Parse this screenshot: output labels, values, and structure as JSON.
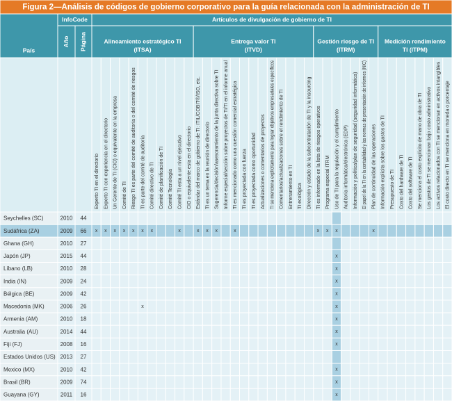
{
  "title": "Figura 2—Análisis de códigos de gobierno corporativo para la guía relacionada con la administración de TI",
  "header": {
    "country": "País",
    "infocode": "InfoCode",
    "year": "Año",
    "page": "Página",
    "articles": "Artículos de divulgación de gobierno de TI"
  },
  "groups": [
    {
      "name": "Alineamiento estratégico TI",
      "code": "(ITSA)",
      "items": [
        "Experto TI en el directorio",
        "Experto TI con experiencia en el directorio",
        "Un Gerente de TI (CIO) o equivalente en la empresa",
        "Comité de TI",
        "Riesgo TI es parte del comité de auditoría o del comité de riesgos",
        "TI es parte del comité de auditoría",
        "Comité directivo de TI",
        "Comité de planificación de TI",
        "Comité Tecnología",
        "Comité TI esta a un nivel ejecutivo",
        "CIO o equivalente esta en el directorio"
      ]
    },
    {
      "name": "Entrega valor TI",
      "code": "(ITVD)",
      "items": [
        "Estándar del marco de gobierno de TI: ITIL/COBIT®/ISO, etc.",
        "TI es un tema en la reunión de directorio",
        "Sugerencia/decisión/asesoramiento de la junta directiva sobre TI",
        "Informe especial/sección sobre proyectos de TI/TI en el informe anual",
        "TI es mencionado como una cuestión comercial estratégica",
        "TI es proyectada con fuerza",
        "TI es proyectada como oportunidad",
        "Actualizaciones o comentarios de proyectos",
        "TI se menciona explícitamente para lograr objetivos empresariales específicos",
        "Comentarios/actualizaciones sobre el rendimiento de TI",
        "Entrenamiento en TI",
        "TI ecológica",
        "Dirección y estado de la subcontratación de TI y la insourcing"
      ]
    },
    {
      "name": "Gestión riesgo de TI",
      "code": "(ITRM)",
      "items": [
        "TI es informado en la lista de riesgos operativos",
        "Programa especial ITRM",
        "Uso de TI para la regulación y el cumplimiento",
        "Auditoría informática/electrónica (EDP)",
        "Información y política/plan de seguridad (seguridad informática)",
        "El papel de la TI en la contabilidad y las normas de presentación de informes (NIC)",
        "Plan de continuidad de las operaciones"
      ]
    },
    {
      "name": "Medición rendimiento",
      "code": "TI (ITPM)",
      "items": [
        "Información explícita sobre los gastos de TI",
        "Presupuesto de TI",
        "Costo del hardware de TI",
        "Costo del software de TI",
        "Se menciona el costo explícito de mano de obra de TI",
        "Los gastos de TI se mencionan bajo costo administrativo",
        "Los activos relacionados con TI se mencionan en activos intangibles",
        "El costo directo en TI se menciona en moneda o porcentaje"
      ]
    }
  ],
  "rows": [
    {
      "country": "Seychelles (SC)",
      "year": 2010,
      "page": 44,
      "cells": [
        null,
        null,
        null,
        null,
        null,
        null,
        null,
        null,
        null,
        null,
        null,
        null,
        null,
        null,
        null,
        null,
        null,
        null,
        null,
        null,
        null,
        null,
        null,
        null,
        null,
        null,
        null,
        null,
        null,
        null,
        null,
        null,
        null,
        null,
        null,
        null,
        null,
        null,
        null
      ]
    },
    {
      "country": "Sudáfrica (ZA)",
      "year": 2009,
      "page": 66,
      "cells": [
        "x",
        "x",
        "x",
        "x",
        "x",
        "x",
        "x",
        null,
        null,
        "x",
        null,
        "x",
        "x",
        "x",
        null,
        "x",
        null,
        null,
        null,
        null,
        null,
        null,
        null,
        null,
        "x",
        "x",
        "x",
        null,
        null,
        null,
        "x",
        null,
        null,
        null,
        null,
        null,
        null,
        null,
        null
      ]
    },
    {
      "country": "Ghana (GH)",
      "year": 2010,
      "page": 27,
      "cells": [
        null,
        null,
        null,
        null,
        null,
        null,
        null,
        null,
        null,
        null,
        null,
        null,
        null,
        null,
        null,
        null,
        null,
        null,
        null,
        null,
        null,
        null,
        null,
        null,
        null,
        null,
        null,
        null,
        null,
        null,
        null,
        null,
        null,
        null,
        null,
        null,
        null,
        null,
        null
      ]
    },
    {
      "country": "Japón (JP)",
      "year": 2015,
      "page": 44,
      "cells": [
        null,
        null,
        null,
        null,
        null,
        null,
        null,
        null,
        null,
        null,
        null,
        null,
        null,
        null,
        null,
        null,
        null,
        null,
        null,
        null,
        null,
        null,
        null,
        null,
        null,
        null,
        "x",
        null,
        null,
        null,
        null,
        null,
        null,
        null,
        null,
        null,
        null,
        null,
        null
      ]
    },
    {
      "country": "Líbano (LB)",
      "year": 2010,
      "page": 28,
      "cells": [
        null,
        null,
        null,
        null,
        null,
        null,
        null,
        null,
        null,
        null,
        null,
        null,
        null,
        null,
        null,
        null,
        null,
        null,
        null,
        null,
        null,
        null,
        null,
        null,
        null,
        null,
        "x",
        null,
        null,
        null,
        null,
        null,
        null,
        null,
        null,
        null,
        null,
        null,
        null
      ]
    },
    {
      "country": "India (IN)",
      "year": 2009,
      "page": 24,
      "cells": [
        null,
        null,
        null,
        null,
        null,
        null,
        null,
        null,
        null,
        null,
        null,
        null,
        null,
        null,
        null,
        null,
        null,
        null,
        null,
        null,
        null,
        null,
        null,
        null,
        null,
        null,
        "x",
        null,
        null,
        null,
        null,
        null,
        null,
        null,
        null,
        null,
        null,
        null,
        null
      ]
    },
    {
      "country": "Bélgica (BE)",
      "year": 2009,
      "page": 42,
      "cells": [
        null,
        null,
        null,
        null,
        null,
        null,
        null,
        null,
        null,
        null,
        null,
        null,
        null,
        null,
        null,
        null,
        null,
        null,
        null,
        null,
        null,
        null,
        null,
        null,
        null,
        null,
        "x",
        null,
        null,
        null,
        null,
        null,
        null,
        null,
        null,
        null,
        null,
        null,
        null
      ]
    },
    {
      "country": "Macedonia (MK)",
      "year": 2006,
      "page": 26,
      "cells": [
        null,
        null,
        null,
        null,
        null,
        "x",
        null,
        null,
        null,
        null,
        null,
        null,
        null,
        null,
        null,
        null,
        null,
        null,
        null,
        null,
        null,
        null,
        null,
        null,
        null,
        null,
        "x",
        null,
        null,
        null,
        null,
        null,
        null,
        null,
        null,
        null,
        null,
        null,
        null
      ]
    },
    {
      "country": "Armenia (AM)",
      "year": 2010,
      "page": 18,
      "cells": [
        null,
        null,
        null,
        null,
        null,
        null,
        null,
        null,
        null,
        null,
        null,
        null,
        null,
        null,
        null,
        null,
        null,
        null,
        null,
        null,
        null,
        null,
        null,
        null,
        null,
        null,
        "x",
        null,
        null,
        null,
        null,
        null,
        null,
        null,
        null,
        null,
        null,
        null,
        null
      ]
    },
    {
      "country": "Australia (AU)",
      "year": 2014,
      "page": 44,
      "cells": [
        null,
        null,
        null,
        null,
        null,
        null,
        null,
        null,
        null,
        null,
        null,
        null,
        null,
        null,
        null,
        null,
        null,
        null,
        null,
        null,
        null,
        null,
        null,
        null,
        null,
        null,
        "x",
        null,
        null,
        null,
        null,
        null,
        null,
        null,
        null,
        null,
        null,
        null,
        null
      ]
    },
    {
      "country": "Fiji (FJ)",
      "year": 2008,
      "page": 16,
      "cells": [
        null,
        null,
        null,
        null,
        null,
        null,
        null,
        null,
        null,
        null,
        null,
        null,
        null,
        null,
        null,
        null,
        null,
        null,
        null,
        null,
        null,
        null,
        null,
        null,
        null,
        null,
        "x",
        null,
        null,
        null,
        null,
        null,
        null,
        null,
        null,
        null,
        null,
        null,
        null
      ]
    },
    {
      "country": "Estados Unidos (US)",
      "year": 2013,
      "page": 27,
      "cells": [
        null,
        null,
        null,
        null,
        null,
        null,
        null,
        null,
        null,
        null,
        null,
        null,
        null,
        null,
        null,
        null,
        null,
        null,
        null,
        null,
        null,
        null,
        null,
        null,
        null,
        null,
        null,
        null,
        null,
        null,
        null,
        null,
        null,
        null,
        null,
        null,
        null,
        null,
        null
      ]
    },
    {
      "country": "Mexico (MX)",
      "year": 2010,
      "page": 42,
      "cells": [
        null,
        null,
        null,
        null,
        null,
        null,
        null,
        null,
        null,
        null,
        null,
        null,
        null,
        null,
        null,
        null,
        null,
        null,
        null,
        null,
        null,
        null,
        null,
        null,
        null,
        null,
        "x",
        null,
        null,
        null,
        null,
        null,
        null,
        null,
        null,
        null,
        null,
        null,
        null
      ]
    },
    {
      "country": "Brasil (BR)",
      "year": 2009,
      "page": 74,
      "cells": [
        null,
        null,
        null,
        null,
        null,
        null,
        null,
        null,
        null,
        null,
        null,
        null,
        null,
        null,
        null,
        null,
        null,
        null,
        null,
        null,
        null,
        null,
        null,
        null,
        null,
        null,
        "x",
        null,
        null,
        null,
        null,
        null,
        null,
        null,
        null,
        null,
        null,
        null,
        null
      ]
    },
    {
      "country": "Guayana (GY)",
      "year": 2011,
      "page": 16,
      "cells": [
        null,
        null,
        null,
        null,
        null,
        null,
        null,
        null,
        null,
        null,
        null,
        null,
        null,
        null,
        null,
        null,
        null,
        null,
        null,
        null,
        null,
        null,
        null,
        null,
        null,
        null,
        "x",
        null,
        null,
        null,
        null,
        null,
        null,
        null,
        null,
        null,
        null,
        null,
        null
      ]
    }
  ]
}
